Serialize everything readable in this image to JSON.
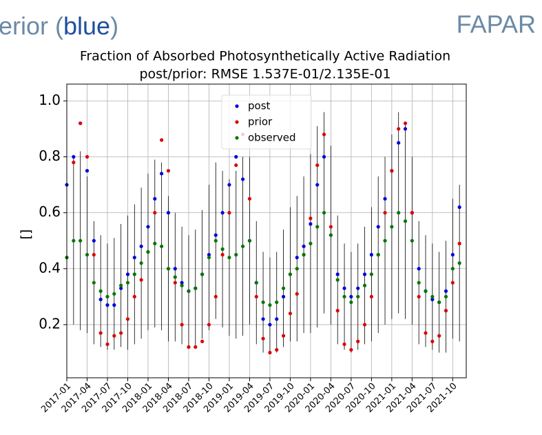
{
  "header": {
    "left": [
      "erior (",
      "blue",
      ")"
    ],
    "right": "FAPAR"
  },
  "chart_data": {
    "type": "scatter",
    "title": "Fraction of Absorbed Photosynthetically Active Radiation",
    "subtitle": "post/prior: RMSE 1.537E-01/2.135E-01",
    "y_label": "[]",
    "x": [
      "2017-01",
      "2017-02",
      "2017-03",
      "2017-04",
      "2017-05",
      "2017-06",
      "2017-07",
      "2017-08",
      "2017-09",
      "2017-10",
      "2017-11",
      "2017-12",
      "2018-01",
      "2018-02",
      "2018-03",
      "2018-04",
      "2018-05",
      "2018-06",
      "2018-07",
      "2018-08",
      "2018-09",
      "2018-10",
      "2018-11",
      "2018-12",
      "2019-01",
      "2019-02",
      "2019-03",
      "2019-04",
      "2019-05",
      "2019-06",
      "2019-07",
      "2019-08",
      "2019-09",
      "2019-10",
      "2019-11",
      "2019-12",
      "2020-01",
      "2020-02",
      "2020-03",
      "2020-04",
      "2020-05",
      "2020-06",
      "2020-07",
      "2020-08",
      "2020-09",
      "2020-10",
      "2020-11",
      "2020-12",
      "2021-01",
      "2021-02",
      "2021-03",
      "2021-04",
      "2021-05",
      "2021-06",
      "2021-07",
      "2021-08",
      "2021-09",
      "2021-10",
      "2021-11"
    ],
    "series": [
      {
        "name": "post",
        "color": "#0000dd",
        "values": [
          0.7,
          0.8,
          0.92,
          0.75,
          0.5,
          0.29,
          0.27,
          0.27,
          0.33,
          0.38,
          0.44,
          0.48,
          0.55,
          0.65,
          0.74,
          0.6,
          0.4,
          0.35,
          0.32,
          0.33,
          0.38,
          0.45,
          0.52,
          0.6,
          0.7,
          0.8,
          0.72,
          0.5,
          0.35,
          0.22,
          0.2,
          0.22,
          0.3,
          0.38,
          0.44,
          0.48,
          0.56,
          0.7,
          0.8,
          0.52,
          0.38,
          0.33,
          0.3,
          0.33,
          0.38,
          0.45,
          0.55,
          0.65,
          0.75,
          0.85,
          0.9,
          0.6,
          0.4,
          0.32,
          0.29,
          0.28,
          0.32,
          0.45,
          0.62
        ]
      },
      {
        "name": "prior",
        "color": "#dd0000",
        "values": [
          0.44,
          0.78,
          0.92,
          0.8,
          0.45,
          0.17,
          0.13,
          0.16,
          0.17,
          0.22,
          0.3,
          0.36,
          0.46,
          0.6,
          0.86,
          0.75,
          0.35,
          0.2,
          0.12,
          0.12,
          0.14,
          0.2,
          0.3,
          0.45,
          0.6,
          0.77,
          0.88,
          0.65,
          0.3,
          0.15,
          0.1,
          0.11,
          0.16,
          0.24,
          0.31,
          0.45,
          0.58,
          0.77,
          0.88,
          0.55,
          0.25,
          0.13,
          0.11,
          0.14,
          0.2,
          0.3,
          0.45,
          0.6,
          0.75,
          0.9,
          0.92,
          0.6,
          0.3,
          0.17,
          0.14,
          0.16,
          0.25,
          0.35,
          0.49
        ]
      },
      {
        "name": "observed",
        "color": "#007700",
        "values": [
          0.44,
          0.5,
          0.5,
          0.45,
          0.35,
          0.32,
          0.3,
          0.31,
          0.34,
          0.35,
          0.38,
          0.42,
          0.46,
          0.49,
          0.48,
          0.4,
          0.37,
          0.34,
          0.32,
          0.33,
          0.38,
          0.44,
          0.5,
          0.47,
          0.44,
          0.45,
          0.48,
          0.5,
          0.35,
          0.28,
          0.27,
          0.28,
          0.33,
          0.38,
          0.4,
          0.45,
          0.49,
          0.55,
          0.6,
          0.52,
          0.36,
          0.3,
          0.28,
          0.3,
          0.34,
          0.38,
          0.45,
          0.5,
          0.55,
          0.6,
          0.57,
          0.5,
          0.35,
          0.32,
          0.3,
          0.28,
          0.3,
          0.4,
          0.42
        ],
        "errors": [
          0.25,
          0.3,
          0.32,
          0.28,
          0.22,
          0.2,
          0.19,
          0.2,
          0.22,
          0.24,
          0.25,
          0.27,
          0.28,
          0.3,
          0.3,
          0.26,
          0.23,
          0.21,
          0.2,
          0.21,
          0.23,
          0.26,
          0.28,
          0.28,
          0.28,
          0.3,
          0.32,
          0.3,
          0.22,
          0.18,
          0.17,
          0.18,
          0.21,
          0.24,
          0.26,
          0.28,
          0.32,
          0.36,
          0.36,
          0.32,
          0.23,
          0.19,
          0.18,
          0.19,
          0.21,
          0.24,
          0.28,
          0.3,
          0.33,
          0.36,
          0.35,
          0.3,
          0.22,
          0.2,
          0.19,
          0.18,
          0.2,
          0.25,
          0.28
        ]
      }
    ],
    "ylim": [
      0.01,
      1.06
    ],
    "yticks": [
      0.2,
      0.4,
      0.6,
      0.8,
      {
        "value": 1.0,
        "label": "1.0"
      }
    ],
    "xlim": [
      "2017-01",
      "2021-12"
    ],
    "xticks": [
      "2017-01",
      "2017-04",
      "2017-07",
      "2017-10",
      "2018-01",
      "2018-04",
      "2018-07",
      "2018-10",
      "2019-01",
      "2019-04",
      "2019-07",
      "2019-10",
      "2020-01",
      "2020-04",
      "2020-07",
      "2020-10",
      "2021-01",
      "2021-04",
      "2021-07",
      "2021-10"
    ],
    "grid": true,
    "legend": "upper center"
  }
}
